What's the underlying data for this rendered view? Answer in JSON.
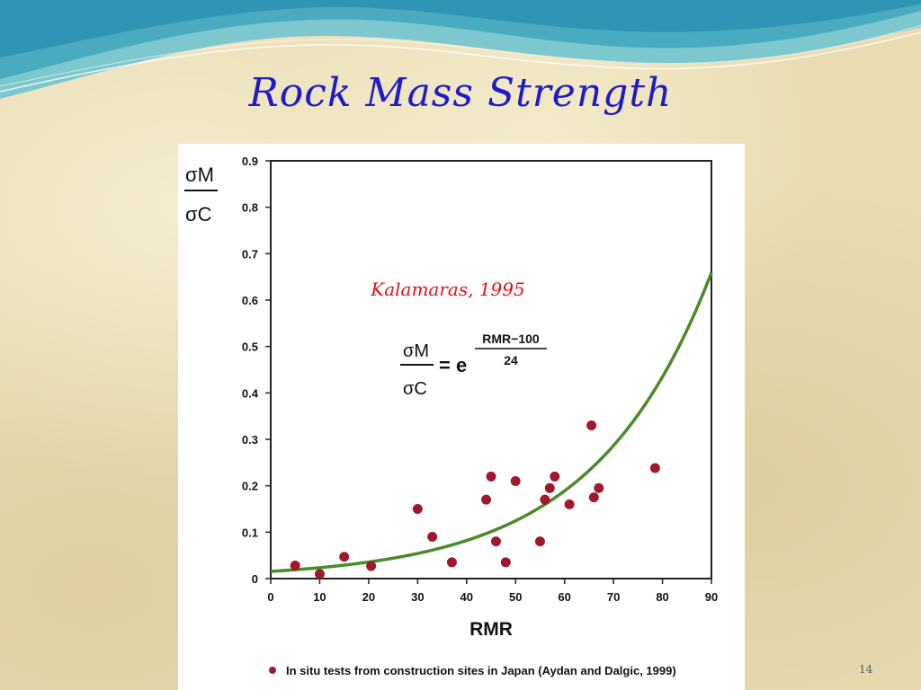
{
  "slide": {
    "title": "Rock Mass Strength",
    "page_number": "14"
  },
  "colors": {
    "title": "#1c1cc8",
    "curve": "#4a8a2a",
    "points": "#a0182c",
    "citation": "#dd1111"
  },
  "chart_data": {
    "type": "scatter",
    "title": "",
    "xlabel": "RMR",
    "ylabel_numerator": "σM",
    "ylabel_denominator": "σC",
    "xlim": [
      0,
      90
    ],
    "ylim": [
      0,
      0.9
    ],
    "xticks": [
      "0",
      "10",
      "20",
      "30",
      "40",
      "50",
      "60",
      "70",
      "80",
      "90"
    ],
    "yticks": [
      "0",
      "0.1",
      "0.2",
      "0.3",
      "0.4",
      "0.5",
      "0.6",
      "0.7",
      "0.8",
      "0.9"
    ],
    "grid": false,
    "citation": "Kalamaras, 1995",
    "equation": {
      "lhs_numerator": "σM",
      "lhs_denominator": "σC",
      "equals": "= e",
      "exp_numerator": "RMR−100",
      "exp_denominator": "24"
    },
    "curve": {
      "name": "",
      "formula": "exp((RMR-100)/24)",
      "x_range": [
        0,
        90
      ]
    },
    "series": [
      {
        "name": "In situ tests from construction sites in Japan (Aydan and Dalgic, 1999)",
        "points": [
          {
            "x": 5,
            "y": 0.028
          },
          {
            "x": 10,
            "y": 0.01
          },
          {
            "x": 15,
            "y": 0.047
          },
          {
            "x": 20.5,
            "y": 0.027
          },
          {
            "x": 30,
            "y": 0.15
          },
          {
            "x": 33,
            "y": 0.09
          },
          {
            "x": 37,
            "y": 0.035
          },
          {
            "x": 44,
            "y": 0.17
          },
          {
            "x": 45,
            "y": 0.22
          },
          {
            "x": 46,
            "y": 0.08
          },
          {
            "x": 48,
            "y": 0.035
          },
          {
            "x": 50,
            "y": 0.21
          },
          {
            "x": 55,
            "y": 0.08
          },
          {
            "x": 56,
            "y": 0.17
          },
          {
            "x": 57,
            "y": 0.195
          },
          {
            "x": 58,
            "y": 0.22
          },
          {
            "x": 61,
            "y": 0.16
          },
          {
            "x": 65.5,
            "y": 0.33
          },
          {
            "x": 66,
            "y": 0.175
          },
          {
            "x": 67,
            "y": 0.195
          },
          {
            "x": 78.5,
            "y": 0.238
          }
        ]
      }
    ],
    "legend_position": "bottom"
  }
}
